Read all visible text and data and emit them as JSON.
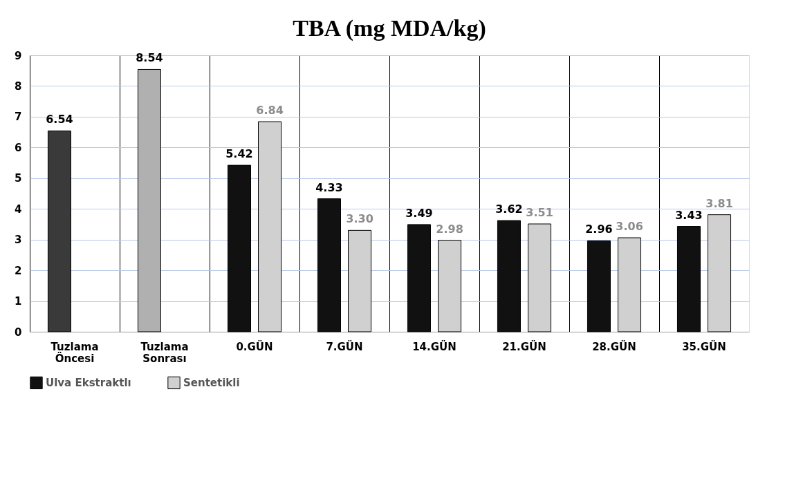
{
  "chart_data": {
    "type": "bar",
    "title": "TBA (mg MDA/kg)",
    "categories": [
      "Tuzlama Öncesi",
      "Tuzlama Sonrası",
      "0.GÜN",
      "7.GÜN",
      "14.GÜN",
      "21.GÜN",
      "28.GÜN",
      "35.GÜN"
    ],
    "series": [
      {
        "name": "Ulva Ekstraktlı",
        "color": "#111111",
        "colors": [
          "#3a3a3a",
          "#b0b0b0",
          "#111111",
          "#111111",
          "#111111",
          "#111111",
          "#111111",
          "#111111"
        ],
        "values": [
          6.54,
          8.54,
          5.42,
          4.33,
          3.49,
          3.62,
          2.96,
          3.43
        ],
        "value_labels": [
          "6.54",
          "8.54",
          "5.42",
          "4.33",
          "3.49",
          "3.62",
          "2.96",
          "3.43"
        ]
      },
      {
        "name": "Sentetikli",
        "color": "#d0d0d0",
        "values": [
          null,
          null,
          6.84,
          3.3,
          2.98,
          3.51,
          3.06,
          3.81
        ],
        "value_labels": [
          null,
          null,
          "6.84",
          "3.30",
          "2.98",
          "3.51",
          "3.06",
          "3.81"
        ]
      }
    ],
    "ylim": [
      0,
      9
    ],
    "yticks": [
      0,
      1,
      2,
      3,
      4,
      5,
      6,
      7,
      8,
      9
    ],
    "grid": true,
    "legend": "bottom"
  }
}
